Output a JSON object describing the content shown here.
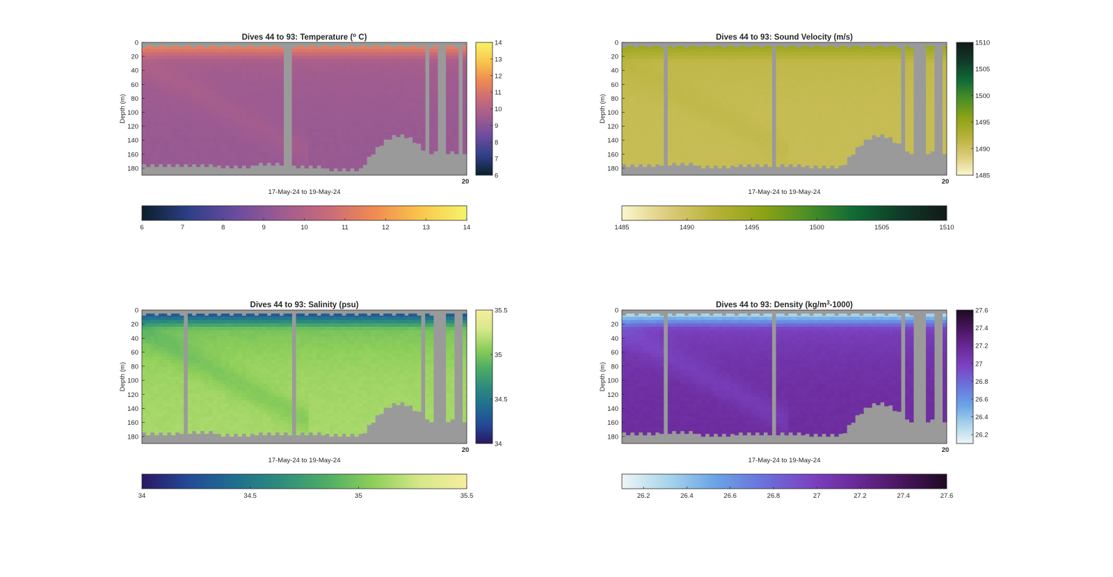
{
  "chart_data": [
    {
      "type": "heatmap",
      "title_prefix": "Dives 44 to 93: Temperature (",
      "title_super": "o",
      "title_suffix": " C)",
      "xlabel": "17-May-24 to 19-May-24",
      "ylabel": "Depth (m)",
      "x_end_label": "20",
      "ylim": [
        0,
        190
      ],
      "y_ticks": [
        0,
        20,
        40,
        60,
        80,
        100,
        120,
        140,
        160,
        180
      ],
      "color_range": [
        6,
        14
      ],
      "cbar_ticks": [
        6,
        7,
        8,
        9,
        10,
        11,
        12,
        13,
        14
      ],
      "cbar_right_ticks": [
        6,
        7,
        8,
        9,
        10,
        11,
        12,
        13,
        14
      ],
      "colormap": [
        "#0b1f2c",
        "#2d3f86",
        "#6a4b9e",
        "#9d5b91",
        "#c86a7a",
        "#f08a52",
        "#f9c64b",
        "#f5f46a"
      ],
      "surface_value": 11.3,
      "deep_value": 9.3,
      "dive_count": 78,
      "gap_dives": [
        34,
        35,
        68,
        71,
        72,
        76
      ],
      "bottom_depths_m": [
        178,
        178,
        180,
        176,
        180,
        184,
        186
      ]
    },
    {
      "type": "heatmap",
      "title_prefix": "Dives 44 to 93: Sound Velocity (m/s)",
      "title_super": "",
      "title_suffix": "",
      "xlabel": "17-May-24 to 19-May-24",
      "ylabel": "Depth (m)",
      "x_end_label": "20",
      "ylim": [
        0,
        190
      ],
      "y_ticks": [
        0,
        20,
        40,
        60,
        80,
        100,
        120,
        140,
        160,
        180
      ],
      "color_range": [
        1485,
        1510
      ],
      "cbar_ticks": [
        1485,
        1490,
        1495,
        1500,
        1505,
        1510
      ],
      "cbar_right_ticks": [
        1485,
        1490,
        1495,
        1500,
        1505,
        1510
      ],
      "colormap": [
        "#fbf6cc",
        "#dccb7a",
        "#b7b23a",
        "#8fa315",
        "#4c8f26",
        "#0f6b34",
        "#0f3b28",
        "#111a17"
      ],
      "surface_value": 1494.2,
      "deep_value": 1490.6,
      "dive_count": 78,
      "gap_dives": [
        10,
        36,
        67,
        70,
        71,
        72,
        75,
        76
      ],
      "bottom_depths_m": [
        178,
        176,
        180,
        178,
        178,
        180,
        180
      ]
    },
    {
      "type": "heatmap",
      "title_prefix": "Dives 44 to 93: Salinity (psu)",
      "title_super": "",
      "title_suffix": "",
      "xlabel": "17-May-24 to 19-May-24",
      "ylabel": "Depth (m)",
      "x_end_label": "20",
      "ylim": [
        0,
        190
      ],
      "y_ticks": [
        0,
        20,
        40,
        60,
        80,
        100,
        120,
        140,
        160,
        180
      ],
      "color_range": [
        34,
        35.5
      ],
      "cbar_ticks": [
        34,
        34.5,
        35,
        35.5
      ],
      "cbar_right_ticks": [
        34,
        34.5,
        35,
        35.5
      ],
      "colormap": [
        "#2a1763",
        "#234a97",
        "#1f6f8f",
        "#2e8d7d",
        "#4fae64",
        "#8fcf5a",
        "#d6e88a",
        "#f6ee9e"
      ],
      "surface_value": 34.35,
      "deep_value": 35.15,
      "dive_count": 78,
      "gap_dives": [
        10,
        36,
        67,
        70,
        71,
        72,
        75,
        76
      ],
      "bottom_depths_m": [
        178,
        176,
        180,
        178,
        178,
        180,
        180
      ]
    },
    {
      "type": "heatmap",
      "title_prefix": "Dives 44 to 93: Density (kg/m",
      "title_super": "3",
      "title_suffix": "-1000)",
      "xlabel": "17-May-24 to 19-May-24",
      "ylabel": "Depth (m)",
      "x_end_label": "20",
      "ylim": [
        0,
        190
      ],
      "y_ticks": [
        0,
        20,
        40,
        60,
        80,
        100,
        120,
        140,
        160,
        180
      ],
      "color_range": [
        26.1,
        27.6
      ],
      "cbar_ticks": [
        26.2,
        26.4,
        26.6,
        26.8,
        27,
        27.2,
        27.4,
        27.6
      ],
      "cbar_right_ticks": [
        26.2,
        26.4,
        26.6,
        26.8,
        27,
        27.2,
        27.4,
        27.6
      ],
      "colormap": [
        "#eef5f6",
        "#a9d4ea",
        "#6aa4e6",
        "#6a74dc",
        "#7b45c4",
        "#6c2a9a",
        "#4a1660",
        "#1e0a22"
      ],
      "surface_value": 26.35,
      "deep_value": 27.15,
      "dive_count": 78,
      "gap_dives": [
        10,
        36,
        67,
        70,
        71,
        72,
        75,
        76
      ],
      "bottom_depths_m": [
        178,
        176,
        180,
        178,
        178,
        180,
        180
      ]
    }
  ]
}
